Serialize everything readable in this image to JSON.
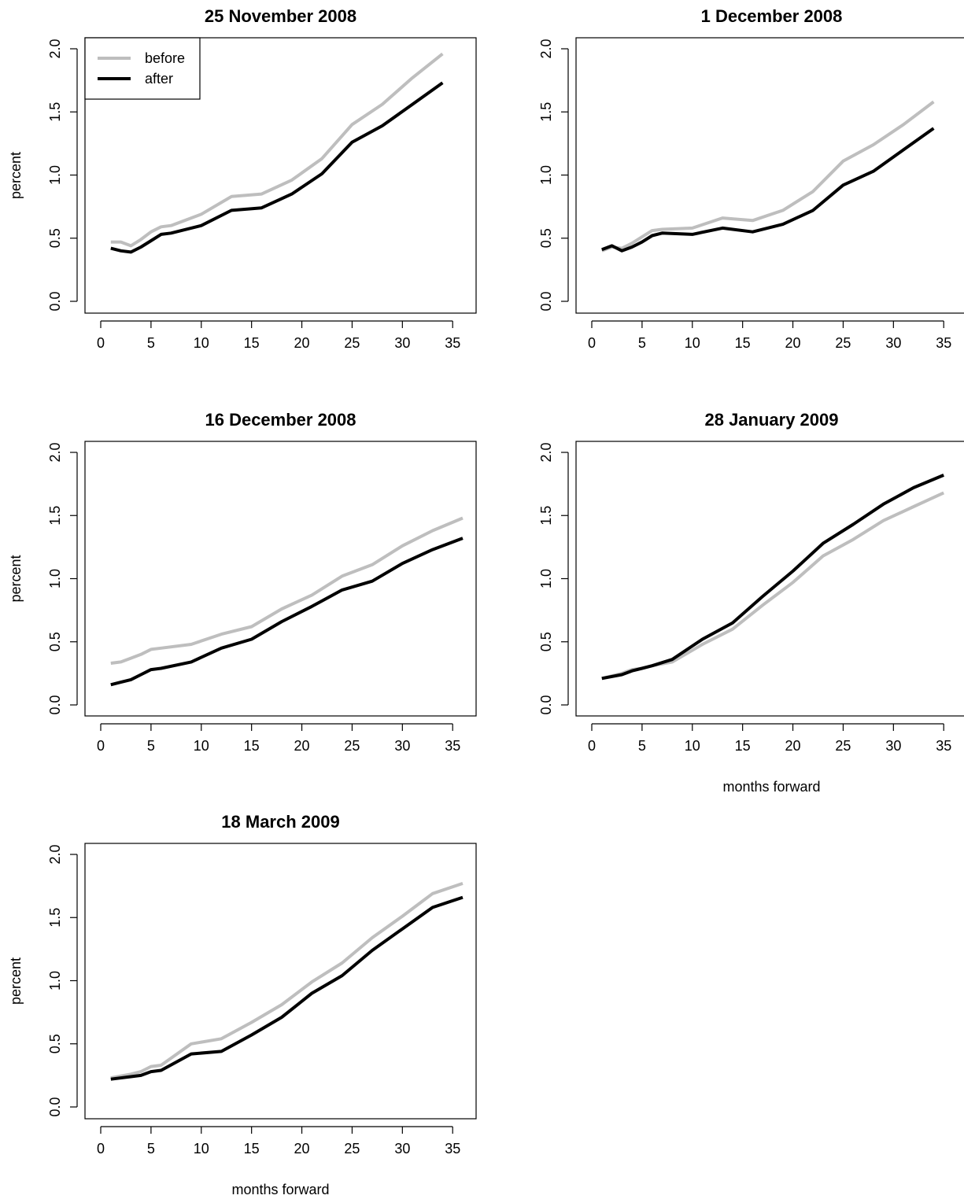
{
  "chart_data": [
    {
      "type": "line",
      "title": "25 November 2008",
      "xlabel": "",
      "ylabel": "percent",
      "xlim": [
        0,
        36
      ],
      "ylim": [
        0,
        2.0
      ],
      "xticks": [
        0,
        5,
        10,
        15,
        20,
        25,
        30,
        35
      ],
      "yticks": [
        "0.0",
        "0.5",
        "1.0",
        "1.5",
        "2.0"
      ],
      "grid": false,
      "legend": {
        "position": "top-left",
        "entries": [
          "before",
          "after"
        ]
      },
      "series": [
        {
          "name": "before",
          "color": "#bebebe",
          "x": [
            1,
            2,
            3,
            4,
            5,
            6,
            7,
            10,
            13,
            16,
            19,
            22,
            25,
            28,
            31,
            34
          ],
          "y": [
            0.47,
            0.47,
            0.44,
            0.49,
            0.55,
            0.59,
            0.6,
            0.69,
            0.83,
            0.85,
            0.96,
            1.13,
            1.4,
            1.56,
            1.77,
            1.96
          ]
        },
        {
          "name": "after",
          "color": "#000000",
          "x": [
            1,
            2,
            3,
            4,
            5,
            6,
            7,
            10,
            13,
            16,
            19,
            22,
            25,
            28,
            31,
            34
          ],
          "y": [
            0.42,
            0.4,
            0.39,
            0.43,
            0.48,
            0.53,
            0.54,
            0.6,
            0.72,
            0.74,
            0.85,
            1.01,
            1.26,
            1.39,
            1.56,
            1.73
          ]
        }
      ]
    },
    {
      "type": "line",
      "title": "1 December 2008",
      "xlabel": "",
      "ylabel": "",
      "xlim": [
        0,
        36
      ],
      "ylim": [
        0,
        2.0
      ],
      "xticks": [
        0,
        5,
        10,
        15,
        20,
        25,
        30,
        35
      ],
      "yticks": [
        "0.0",
        "0.5",
        "1.0",
        "1.5",
        "2.0"
      ],
      "grid": false,
      "series": [
        {
          "name": "before",
          "color": "#bebebe",
          "x": [
            1,
            2,
            3,
            4,
            5,
            6,
            7,
            10,
            13,
            16,
            19,
            22,
            25,
            28,
            31,
            34
          ],
          "y": [
            0.4,
            0.43,
            0.42,
            0.46,
            0.51,
            0.56,
            0.57,
            0.58,
            0.66,
            0.64,
            0.72,
            0.87,
            1.11,
            1.24,
            1.4,
            1.58
          ]
        },
        {
          "name": "after",
          "color": "#000000",
          "x": [
            1,
            2,
            3,
            4,
            5,
            6,
            7,
            10,
            13,
            16,
            19,
            22,
            25,
            28,
            31,
            34
          ],
          "y": [
            0.41,
            0.44,
            0.4,
            0.43,
            0.47,
            0.52,
            0.54,
            0.53,
            0.58,
            0.55,
            0.61,
            0.72,
            0.92,
            1.03,
            1.2,
            1.37
          ]
        }
      ]
    },
    {
      "type": "line",
      "title": "16 December 2008",
      "xlabel": "",
      "ylabel": "percent",
      "xlim": [
        0,
        36
      ],
      "ylim": [
        0,
        2.0
      ],
      "xticks": [
        0,
        5,
        10,
        15,
        20,
        25,
        30,
        35
      ],
      "yticks": [
        "0.0",
        "0.5",
        "1.0",
        "1.5",
        "2.0"
      ],
      "grid": false,
      "series": [
        {
          "name": "before",
          "color": "#bebebe",
          "x": [
            1,
            2,
            3,
            4,
            5,
            6,
            9,
            12,
            15,
            18,
            21,
            24,
            27,
            30,
            33,
            36
          ],
          "y": [
            0.33,
            0.34,
            0.37,
            0.4,
            0.44,
            0.45,
            0.48,
            0.56,
            0.62,
            0.76,
            0.87,
            1.02,
            1.11,
            1.26,
            1.38,
            1.48
          ]
        },
        {
          "name": "after",
          "color": "#000000",
          "x": [
            1,
            2,
            3,
            4,
            5,
            6,
            9,
            12,
            15,
            18,
            21,
            24,
            27,
            30,
            33,
            36
          ],
          "y": [
            0.16,
            0.18,
            0.2,
            0.24,
            0.28,
            0.29,
            0.34,
            0.45,
            0.52,
            0.66,
            0.78,
            0.91,
            0.98,
            1.12,
            1.23,
            1.32
          ]
        }
      ]
    },
    {
      "type": "line",
      "title": "28 January 2009",
      "xlabel": "months forward",
      "ylabel": "",
      "xlim": [
        0,
        36
      ],
      "ylim": [
        0,
        2.0
      ],
      "xticks": [
        0,
        5,
        10,
        15,
        20,
        25,
        30,
        35
      ],
      "yticks": [
        "0.0",
        "0.5",
        "1.0",
        "1.5",
        "2.0"
      ],
      "grid": false,
      "series": [
        {
          "name": "before",
          "color": "#bebebe",
          "x": [
            1,
            3,
            4,
            5,
            6,
            8,
            11,
            14,
            17,
            20,
            23,
            26,
            29,
            32,
            35
          ],
          "y": [
            0.21,
            0.25,
            0.28,
            0.29,
            0.31,
            0.34,
            0.48,
            0.6,
            0.79,
            0.97,
            1.18,
            1.31,
            1.46,
            1.57,
            1.68
          ]
        },
        {
          "name": "after",
          "color": "#000000",
          "x": [
            1,
            3,
            4,
            5,
            6,
            8,
            11,
            14,
            17,
            20,
            23,
            26,
            29,
            32,
            35
          ],
          "y": [
            0.21,
            0.24,
            0.27,
            0.29,
            0.31,
            0.36,
            0.52,
            0.65,
            0.86,
            1.06,
            1.28,
            1.43,
            1.59,
            1.72,
            1.82
          ]
        }
      ]
    },
    {
      "type": "line",
      "title": "18 March 2009",
      "xlabel": "months forward",
      "ylabel": "percent",
      "xlim": [
        0,
        36
      ],
      "ylim": [
        0,
        2.0
      ],
      "xticks": [
        0,
        5,
        10,
        15,
        20,
        25,
        30,
        35
      ],
      "yticks": [
        "0.0",
        "0.5",
        "1.0",
        "1.5",
        "2.0"
      ],
      "grid": false,
      "series": [
        {
          "name": "before",
          "color": "#bebebe",
          "x": [
            1,
            3,
            4,
            5,
            6,
            9,
            12,
            15,
            18,
            21,
            24,
            27,
            30,
            33,
            36
          ],
          "y": [
            0.23,
            0.26,
            0.28,
            0.32,
            0.33,
            0.5,
            0.54,
            0.67,
            0.81,
            0.99,
            1.14,
            1.34,
            1.51,
            1.69,
            1.77
          ]
        },
        {
          "name": "after",
          "color": "#000000",
          "x": [
            1,
            3,
            4,
            5,
            6,
            9,
            12,
            15,
            18,
            21,
            24,
            27,
            30,
            33,
            36
          ],
          "y": [
            0.22,
            0.24,
            0.25,
            0.28,
            0.29,
            0.42,
            0.44,
            0.57,
            0.71,
            0.9,
            1.04,
            1.24,
            1.41,
            1.58,
            1.66
          ]
        }
      ]
    }
  ]
}
